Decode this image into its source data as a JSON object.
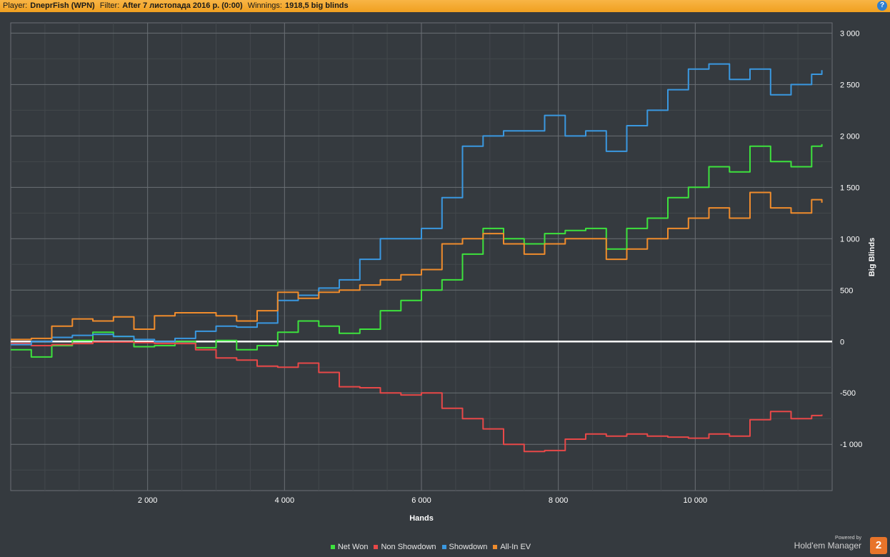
{
  "header": {
    "player_label": "Player:",
    "player_value": "DneprFish (WPN)",
    "filter_label": "Filter:",
    "filter_value": "After 7 листопада 2016 р. (0:00)",
    "winnings_label": "Winnings:",
    "winnings_value": "1918,5 big blinds",
    "help_icon": "?"
  },
  "branding": {
    "powered": "Powered by",
    "name": "Hold'em Manager",
    "badge": "2"
  },
  "colors": {
    "background": "#353a3f",
    "grid_major": "#6a6f74",
    "grid_minor": "#43484d",
    "zero_line": "#ffffff"
  },
  "chart_data": {
    "type": "line",
    "xlabel": "Hands",
    "ylabel": "Big Blinds",
    "xlim": [
      0,
      12000
    ],
    "ylim": [
      -1450,
      3100
    ],
    "x_ticks": [
      2000,
      4000,
      6000,
      8000,
      10000
    ],
    "x_tick_labels": [
      "2 000",
      "4 000",
      "6 000",
      "8 000",
      "10 000"
    ],
    "y_ticks": [
      3000,
      2500,
      2000,
      1500,
      1000,
      500,
      0,
      -500,
      -1000
    ],
    "y_tick_labels": [
      "3 000",
      "2 500",
      "2 000",
      "1 500",
      "1 000",
      "500",
      "0",
      "-500",
      "-1 000"
    ],
    "grid": true,
    "legend_position": "bottom",
    "series": [
      {
        "name": "Net Won",
        "color": "#3de23d",
        "x": [
          0,
          300,
          600,
          900,
          1200,
          1500,
          1800,
          2100,
          2400,
          2700,
          3000,
          3300,
          3600,
          3900,
          4200,
          4500,
          4800,
          5100,
          5400,
          5700,
          6000,
          6300,
          6600,
          6900,
          7200,
          7500,
          7800,
          8100,
          8400,
          8700,
          9000,
          9300,
          9600,
          9900,
          10200,
          10500,
          10800,
          11100,
          11400,
          11700,
          11850
        ],
        "y": [
          -80,
          -150,
          -40,
          10,
          90,
          50,
          -50,
          -40,
          0,
          -60,
          10,
          -80,
          -40,
          90,
          200,
          150,
          80,
          120,
          300,
          400,
          500,
          600,
          850,
          1100,
          1000,
          950,
          1050,
          1080,
          1100,
          900,
          1100,
          1200,
          1400,
          1500,
          1700,
          1650,
          1900,
          1750,
          1700,
          1900,
          1920
        ]
      },
      {
        "name": "Non Showdown",
        "color": "#e84848",
        "x": [
          0,
          300,
          600,
          900,
          1200,
          1500,
          1800,
          2100,
          2400,
          2700,
          3000,
          3300,
          3600,
          3900,
          4200,
          4500,
          4800,
          5100,
          5400,
          5700,
          6000,
          6300,
          6600,
          6900,
          7200,
          7500,
          7800,
          8100,
          8400,
          8700,
          9000,
          9300,
          9600,
          9900,
          10200,
          10500,
          10800,
          11100,
          11400,
          11700,
          11850
        ],
        "y": [
          -20,
          -40,
          -30,
          -20,
          -5,
          -5,
          -10,
          -20,
          -20,
          -80,
          -160,
          -180,
          -240,
          -250,
          -210,
          -300,
          -440,
          -450,
          -500,
          -520,
          -500,
          -650,
          -750,
          -850,
          -1000,
          -1070,
          -1060,
          -950,
          -900,
          -920,
          -900,
          -920,
          -930,
          -940,
          -900,
          -920,
          -760,
          -680,
          -750,
          -720,
          -710
        ]
      },
      {
        "name": "Showdown",
        "color": "#3a98e0",
        "x": [
          0,
          300,
          600,
          900,
          1200,
          1500,
          1800,
          2100,
          2400,
          2700,
          3000,
          3300,
          3600,
          3900,
          4200,
          4500,
          4800,
          5100,
          5400,
          5700,
          6000,
          6300,
          6600,
          6900,
          7200,
          7500,
          7800,
          8100,
          8400,
          8700,
          9000,
          9300,
          9600,
          9900,
          10200,
          10500,
          10800,
          11100,
          11400,
          11700,
          11850
        ],
        "y": [
          -30,
          0,
          40,
          60,
          70,
          50,
          20,
          0,
          30,
          100,
          150,
          140,
          180,
          400,
          450,
          520,
          600,
          800,
          1000,
          1000,
          1100,
          1400,
          1900,
          2000,
          2050,
          2050,
          2200,
          2000,
          2050,
          1850,
          2100,
          2250,
          2450,
          2650,
          2700,
          2550,
          2650,
          2400,
          2500,
          2600,
          2640
        ]
      },
      {
        "name": "All-In EV",
        "color": "#f08c2c",
        "x": [
          0,
          300,
          600,
          900,
          1200,
          1500,
          1800,
          2100,
          2400,
          2700,
          3000,
          3300,
          3600,
          3900,
          4200,
          4500,
          4800,
          5100,
          5400,
          5700,
          6000,
          6300,
          6600,
          6900,
          7200,
          7500,
          7800,
          8100,
          8400,
          8700,
          9000,
          9300,
          9600,
          9900,
          10200,
          10500,
          10800,
          11100,
          11400,
          11700,
          11850
        ],
        "y": [
          20,
          30,
          150,
          220,
          200,
          240,
          120,
          250,
          280,
          280,
          250,
          200,
          300,
          480,
          420,
          480,
          500,
          550,
          600,
          650,
          700,
          950,
          1000,
          1050,
          950,
          850,
          950,
          1000,
          1000,
          800,
          900,
          1000,
          1100,
          1200,
          1300,
          1200,
          1450,
          1300,
          1250,
          1380,
          1350
        ]
      }
    ]
  }
}
